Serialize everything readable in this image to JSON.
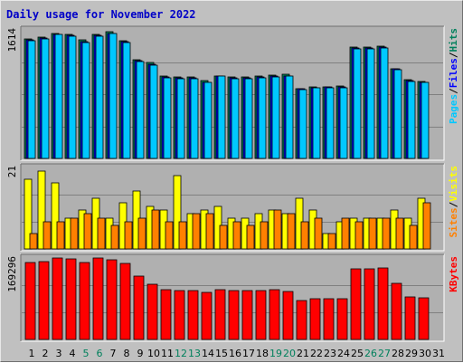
{
  "title": "Daily usage for November 2022",
  "chart_data": [
    {
      "type": "bar",
      "panel": "top",
      "ymax_label": "1614",
      "ymax": 1614,
      "right_labels": [
        "Pages",
        "/",
        "Files",
        "/",
        "Hits"
      ],
      "series": [
        {
          "name": "Hits",
          "color": "#00805c",
          "values": [
            1500,
            1520,
            1570,
            1560,
            1490,
            1560,
            1590,
            1480,
            1240,
            1200,
            1030,
            1020,
            1020,
            980,
            1040,
            1020,
            1020,
            1030,
            1050,
            1060,
            880,
            900,
            900,
            910,
            1400,
            1400,
            1410,
            1130,
            990,
            970
          ]
        },
        {
          "name": "Files",
          "color": "#0000ff",
          "values": [
            1490,
            1510,
            1560,
            1550,
            1470,
            1550,
            1570,
            1470,
            1230,
            1180,
            1020,
            1010,
            1010,
            960,
            1040,
            1010,
            1010,
            1020,
            1030,
            1040,
            870,
            890,
            900,
            900,
            1390,
            1390,
            1400,
            1120,
            980,
            960
          ]
        },
        {
          "name": "Pages",
          "color": "#00c8ff",
          "values": [
            1480,
            1500,
            1560,
            1540,
            1460,
            1540,
            1570,
            1460,
            1220,
            1170,
            1010,
            1000,
            1000,
            960,
            1030,
            1000,
            1000,
            1010,
            1020,
            1030,
            860,
            890,
            890,
            890,
            1380,
            1380,
            1390,
            1110,
            970,
            950
          ]
        }
      ]
    },
    {
      "type": "bar",
      "panel": "middle",
      "ymax_label": "21",
      "ymax": 21,
      "right_labels": [
        "Sites",
        "/",
        "Visits"
      ],
      "series": [
        {
          "name": "Visits",
          "color": "#ffff00",
          "values": [
            18,
            20,
            17,
            8,
            10,
            13,
            8,
            12,
            15,
            11,
            10,
            19,
            9,
            10,
            11,
            8,
            8,
            9,
            10,
            9,
            13,
            10,
            4,
            7,
            8,
            8,
            8,
            10,
            8,
            13
          ]
        },
        {
          "name": "Sites",
          "color": "#ff8000",
          "values": [
            4,
            7,
            7,
            8,
            9,
            8,
            6,
            7,
            8,
            10,
            7,
            7,
            9,
            9,
            6,
            7,
            6,
            7,
            10,
            9,
            7,
            8,
            4,
            8,
            7,
            8,
            8,
            8,
            6,
            12
          ]
        }
      ]
    },
    {
      "type": "bar",
      "panel": "bottom",
      "ymax_label": "169296",
      "ymax": 169296,
      "right_labels": [
        "KBytes"
      ],
      "series": [
        {
          "name": "KBytes",
          "color": "#ff0000",
          "values": [
            160000,
            162000,
            169000,
            168000,
            159000,
            169000,
            165000,
            158000,
            131000,
            114000,
            103000,
            101000,
            101000,
            97000,
            104000,
            101000,
            101000,
            102000,
            104000,
            99000,
            80000,
            84000,
            85000,
            85000,
            146000,
            147000,
            148000,
            116000,
            89000,
            87000
          ]
        }
      ]
    }
  ],
  "days": [
    "1",
    "2",
    "3",
    "4",
    "5",
    "6",
    "7",
    "8",
    "9",
    "10",
    "11",
    "12",
    "13",
    "14",
    "15",
    "16",
    "17",
    "18",
    "19",
    "20",
    "21",
    "22",
    "23",
    "24",
    "25",
    "26",
    "27",
    "28",
    "29",
    "30",
    "31"
  ],
  "weekend_days": [
    5,
    6,
    12,
    13,
    19,
    20,
    26,
    27
  ],
  "colors": {
    "background": "#c0c0c0",
    "panel": "#b0b0b0",
    "title": "#0000c8",
    "day_normal": "#000000",
    "day_weekend": "#00805c",
    "grid": "#808080"
  }
}
